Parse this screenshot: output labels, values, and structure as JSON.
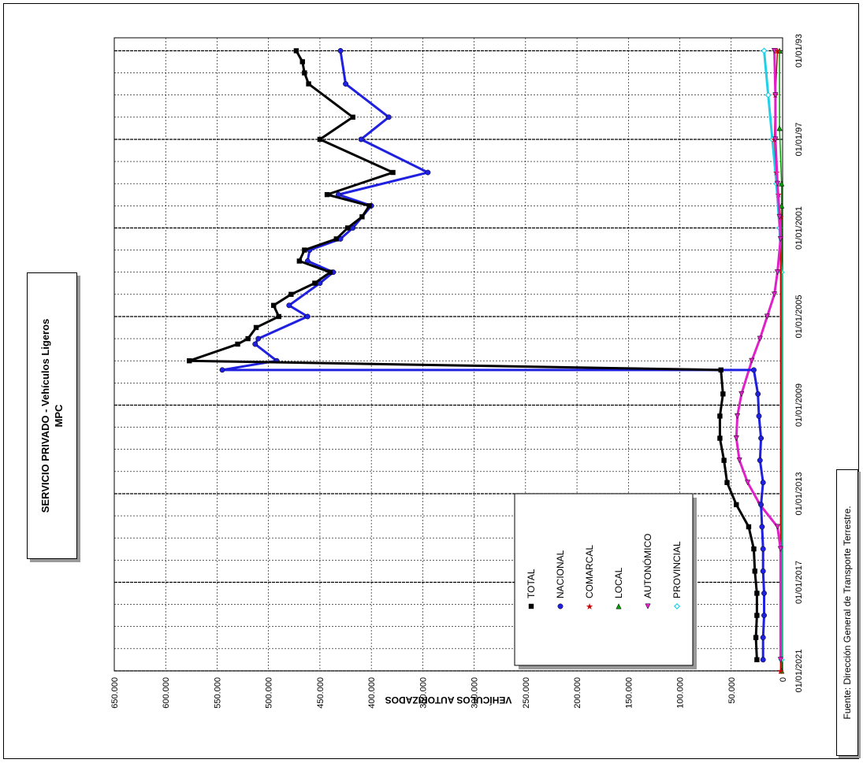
{
  "page": {
    "title_line1": "SERVICIO PRIVADO - Vehículos Ligeros",
    "title_line2": "MPC",
    "source": "Fuente: Dirección General de Transporte Terrestre."
  },
  "chart_data": {
    "type": "line",
    "title": "SERVICIO PRIVADO - Vehículos Ligeros",
    "subtitle": "MPC",
    "ylabel": "VEHÍCULOS  AUTORIZADOS",
    "xlabel": "",
    "orientation": "rotated 90° clockwise (x axis runs top to bottom, y axis runs right to left)",
    "xlim": [
      "1992-06-01",
      "2021-01-01"
    ],
    "ylim": [
      0,
      650000
    ],
    "x_ticks": [
      "01/01/93",
      "01/01/97",
      "01/01/2001",
      "01/01/2005",
      "01/01/2009",
      "01/01/2013",
      "01/01/2017",
      "01/01/2021"
    ],
    "y_ticks": [
      "0",
      "50.000",
      "100.000",
      "150.000",
      "200.000",
      "250.000",
      "300.000",
      "350.000",
      "400.000",
      "450.000",
      "500.000",
      "550.000",
      "600.000",
      "650.000"
    ],
    "grid": true,
    "legend_position": "inside, lower-middle",
    "series": [
      {
        "name": "TOTAL",
        "color": "#000000",
        "marker": "square",
        "points": [
          [
            "1993-01-01",
            473000
          ],
          [
            "1993-07-01",
            467000
          ],
          [
            "1994-01-01",
            465000
          ],
          [
            "1994-07-01",
            461000
          ],
          [
            "1996-01-01",
            418000
          ],
          [
            "1997-01-01",
            450000
          ],
          [
            "1998-07-01",
            379000
          ],
          [
            "1999-07-01",
            443000
          ],
          [
            "2000-01-01",
            402000
          ],
          [
            "2000-07-01",
            409000
          ],
          [
            "2001-01-01",
            423000
          ],
          [
            "2001-07-01",
            434000
          ],
          [
            "2002-01-01",
            465000
          ],
          [
            "2002-07-01",
            470000
          ],
          [
            "2003-01-01",
            440000
          ],
          [
            "2003-07-01",
            455000
          ],
          [
            "2004-01-01",
            478000
          ],
          [
            "2004-07-01",
            495000
          ],
          [
            "2005-01-01",
            490000
          ],
          [
            "2005-07-01",
            512000
          ],
          [
            "2006-01-01",
            520000
          ],
          [
            "2006-04-01",
            530000
          ],
          [
            "2007-01-01",
            577000
          ],
          [
            "2007-06-01",
            60000
          ],
          [
            "2008-07-01",
            58000
          ],
          [
            "2009-07-01",
            61000
          ],
          [
            "2010-07-01",
            61000
          ],
          [
            "2011-07-01",
            57000
          ],
          [
            "2012-07-01",
            54000
          ],
          [
            "2013-07-01",
            45000
          ],
          [
            "2014-07-01",
            33000
          ],
          [
            "2015-07-01",
            28000
          ],
          [
            "2016-07-01",
            27000
          ],
          [
            "2017-07-01",
            25000
          ],
          [
            "2018-07-01",
            25000
          ],
          [
            "2019-07-01",
            26000
          ],
          [
            "2020-07-01",
            25000
          ]
        ]
      },
      {
        "name": "NACIONAL",
        "color": "#2020e0",
        "marker": "circle",
        "points": [
          [
            "1993-01-01",
            430000
          ],
          [
            "1994-07-01",
            425000
          ],
          [
            "1996-01-01",
            383000
          ],
          [
            "1997-01-01",
            410000
          ],
          [
            "1998-07-01",
            345000
          ],
          [
            "1999-07-01",
            432000
          ],
          [
            "2000-01-01",
            400000
          ],
          [
            "2001-01-01",
            418000
          ],
          [
            "2001-07-01",
            430000
          ],
          [
            "2002-01-01",
            460000
          ],
          [
            "2002-07-01",
            462000
          ],
          [
            "2003-01-01",
            437000
          ],
          [
            "2003-07-01",
            450000
          ],
          [
            "2004-07-01",
            480000
          ],
          [
            "2005-01-01",
            462000
          ],
          [
            "2006-01-01",
            510000
          ],
          [
            "2006-04-01",
            513000
          ],
          [
            "2007-01-01",
            492000
          ],
          [
            "2007-06-01",
            545000
          ],
          [
            "2007-06-02",
            28000
          ],
          [
            "2008-07-01",
            24000
          ],
          [
            "2009-07-01",
            23000
          ],
          [
            "2010-07-01",
            21000
          ],
          [
            "2011-07-01",
            22000
          ],
          [
            "2012-07-01",
            19000
          ],
          [
            "2013-07-01",
            21000
          ],
          [
            "2014-07-01",
            20000
          ],
          [
            "2015-07-01",
            19000
          ],
          [
            "2016-07-01",
            19000
          ],
          [
            "2017-07-01",
            18000
          ],
          [
            "2018-07-01",
            18000
          ],
          [
            "2019-07-01",
            19000
          ],
          [
            "2020-07-01",
            19000
          ]
        ]
      },
      {
        "name": "COMARCAL",
        "color": "#cc0000",
        "marker": "star",
        "points": [
          [
            "1993-01-01",
            5000
          ],
          [
            "1995-01-01",
            7000
          ],
          [
            "1997-01-01",
            8000
          ],
          [
            "1998-07-01",
            6000
          ],
          [
            "1999-07-01",
            4000
          ],
          [
            "2000-07-01",
            2000
          ],
          [
            "2021-01-01",
            2000
          ]
        ]
      },
      {
        "name": "LOCAL",
        "color": "#00a000",
        "marker": "triangle",
        "points": [
          [
            "1993-01-01",
            3000
          ],
          [
            "1996-07-01",
            3000
          ],
          [
            "1999-01-01",
            1000
          ],
          [
            "2000-01-01",
            1000
          ],
          [
            "2021-01-01",
            1000
          ]
        ]
      },
      {
        "name": "AUTONÓMICO",
        "color": "#e020c8",
        "marker": "triangle-down",
        "points": [
          [
            "1993-01-01",
            8000
          ],
          [
            "1995-01-01",
            7000
          ],
          [
            "1997-01-01",
            7000
          ],
          [
            "1999-01-01",
            5000
          ],
          [
            "2000-07-01",
            3000
          ],
          [
            "2001-07-01",
            2000
          ],
          [
            "2003-01-01",
            5000
          ],
          [
            "2004-01-01",
            8000
          ],
          [
            "2005-01-01",
            15000
          ],
          [
            "2006-01-01",
            22000
          ],
          [
            "2007-01-01",
            30000
          ],
          [
            "2008-07-01",
            40000
          ],
          [
            "2009-07-01",
            44000
          ],
          [
            "2010-07-01",
            45000
          ],
          [
            "2011-07-01",
            42000
          ],
          [
            "2012-07-01",
            34000
          ],
          [
            "2013-07-01",
            22000
          ],
          [
            "2014-07-01",
            5000
          ],
          [
            "2015-07-01",
            2000
          ],
          [
            "2020-07-01",
            2000
          ]
        ]
      },
      {
        "name": "PROVINCIAL",
        "color": "#20d0e8",
        "marker": "diamond",
        "points": [
          [
            "1993-01-01",
            18000
          ],
          [
            "1995-01-01",
            14000
          ],
          [
            "1997-01-01",
            10000
          ],
          [
            "1999-01-01",
            6000
          ],
          [
            "2001-01-01",
            3000
          ],
          [
            "2003-01-01",
            1000
          ],
          [
            "2020-07-01",
            1000
          ]
        ]
      }
    ]
  }
}
